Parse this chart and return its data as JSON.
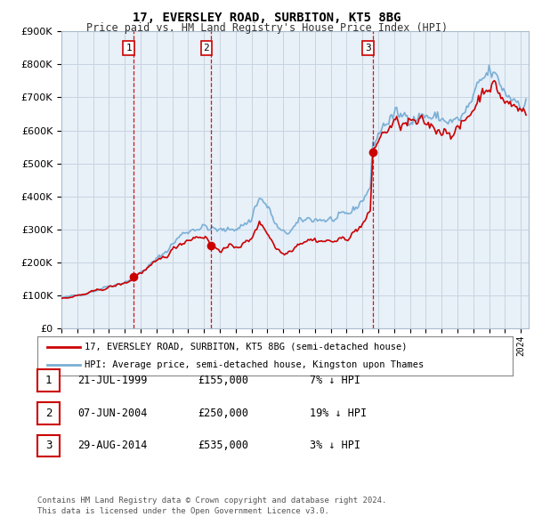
{
  "title": "17, EVERSLEY ROAD, SURBITON, KT5 8BG",
  "subtitle": "Price paid vs. HM Land Registry's House Price Index (HPI)",
  "legend_line1": "17, EVERSLEY ROAD, SURBITON, KT5 8BG (semi-detached house)",
  "legend_line2": "HPI: Average price, semi-detached house, Kingston upon Thames",
  "footer1": "Contains HM Land Registry data © Crown copyright and database right 2024.",
  "footer2": "This data is licensed under the Open Government Licence v3.0.",
  "transactions": [
    {
      "num": 1,
      "date": "21-JUL-1999",
      "price": "£155,000",
      "hpi_pct": "7% ↓ HPI"
    },
    {
      "num": 2,
      "date": "07-JUN-2004",
      "price": "£250,000",
      "hpi_pct": "19% ↓ HPI"
    },
    {
      "num": 3,
      "date": "29-AUG-2014",
      "price": "£535,000",
      "hpi_pct": "3% ↓ HPI"
    }
  ],
  "transaction_years": [
    1999.55,
    2004.44,
    2014.66
  ],
  "transaction_prices": [
    155000,
    250000,
    535000
  ],
  "vline_color": "#cc0000",
  "property_line_color": "#cc0000",
  "hpi_line_color": "#7bafd4",
  "fill_color": "#ddeeff",
  "chart_bg_color": "#e8f0f8",
  "background_color": "#ffffff",
  "grid_color": "#c8d4e0",
  "ylim": [
    0,
    900000
  ],
  "xlim_start": 1995.0,
  "xlim_end": 2024.5,
  "hpi_anchor_x": [
    1995,
    1995.5,
    1996,
    1996.5,
    1997,
    1997.5,
    1998,
    1998.5,
    1999,
    1999.5,
    2000,
    2000.5,
    2001,
    2001.5,
    2002,
    2002.5,
    2003,
    2003.5,
    2004,
    2004.5,
    2005,
    2005.5,
    2006,
    2006.5,
    2007,
    2007.25,
    2007.5,
    2007.75,
    2008,
    2008.25,
    2008.5,
    2008.75,
    2009,
    2009.25,
    2009.5,
    2009.75,
    2010,
    2010.5,
    2011,
    2011.5,
    2012,
    2012.5,
    2013,
    2013.5,
    2014,
    2014.5,
    2014.66,
    2015,
    2015.5,
    2016,
    2016.5,
    2017,
    2017.5,
    2018,
    2018.5,
    2019,
    2019.5,
    2020,
    2020.5,
    2021,
    2021.5,
    2022,
    2022.25,
    2022.5,
    2022.75,
    2023,
    2023.5,
    2024,
    2024.25
  ],
  "hpi_anchor_y": [
    92000,
    95000,
    100000,
    106000,
    113000,
    121000,
    128000,
    134000,
    140000,
    152000,
    168000,
    188000,
    207000,
    228000,
    255000,
    280000,
    295000,
    305000,
    308000,
    300000,
    295000,
    295000,
    305000,
    315000,
    328000,
    375000,
    395000,
    385000,
    368000,
    345000,
    315000,
    298000,
    285000,
    288000,
    298000,
    308000,
    318000,
    330000,
    332000,
    330000,
    328000,
    330000,
    340000,
    360000,
    390000,
    430000,
    551000,
    590000,
    625000,
    645000,
    640000,
    650000,
    645000,
    645000,
    638000,
    632000,
    630000,
    625000,
    650000,
    695000,
    740000,
    775000,
    770000,
    750000,
    735000,
    715000,
    700000,
    690000,
    688000
  ],
  "prop_anchor_x": [
    1995,
    1995.5,
    1996,
    1996.5,
    1997,
    1997.5,
    1998,
    1998.5,
    1999,
    1999.5,
    1999.55,
    2000,
    2000.5,
    2001,
    2001.5,
    2002,
    2002.5,
    2003,
    2003.5,
    2004,
    2004.25,
    2004.44,
    2004.5,
    2005,
    2005.5,
    2006,
    2006.5,
    2007,
    2007.25,
    2007.5,
    2007.75,
    2008,
    2008.25,
    2008.5,
    2008.75,
    2009,
    2009.25,
    2009.5,
    2009.75,
    2010,
    2010.5,
    2011,
    2011.5,
    2012,
    2012.5,
    2013,
    2013.5,
    2014,
    2014.5,
    2014.66,
    2015,
    2015.5,
    2016,
    2016.5,
    2017,
    2017.5,
    2018,
    2018.5,
    2019,
    2019.5,
    2020,
    2020.5,
    2021,
    2021.5,
    2022,
    2022.25,
    2022.5,
    2022.75,
    2023,
    2023.5,
    2024,
    2024.25
  ],
  "prop_anchor_y": [
    90000,
    93000,
    98000,
    103000,
    110000,
    117000,
    124000,
    130000,
    136000,
    148000,
    155000,
    168000,
    183000,
    198000,
    215000,
    237000,
    258000,
    270000,
    278000,
    281000,
    270000,
    250000,
    245000,
    240000,
    242000,
    248000,
    257000,
    265000,
    302000,
    318000,
    308000,
    292000,
    272000,
    248000,
    237000,
    225000,
    229000,
    240000,
    250000,
    260000,
    270000,
    268000,
    265000,
    263000,
    265000,
    274000,
    292000,
    315000,
    348000,
    535000,
    570000,
    600000,
    620000,
    615000,
    622000,
    617000,
    617000,
    610000,
    604000,
    602000,
    598000,
    624000,
    668000,
    712000,
    745000,
    740000,
    720000,
    706000,
    687000,
    672000,
    663000,
    660000
  ]
}
